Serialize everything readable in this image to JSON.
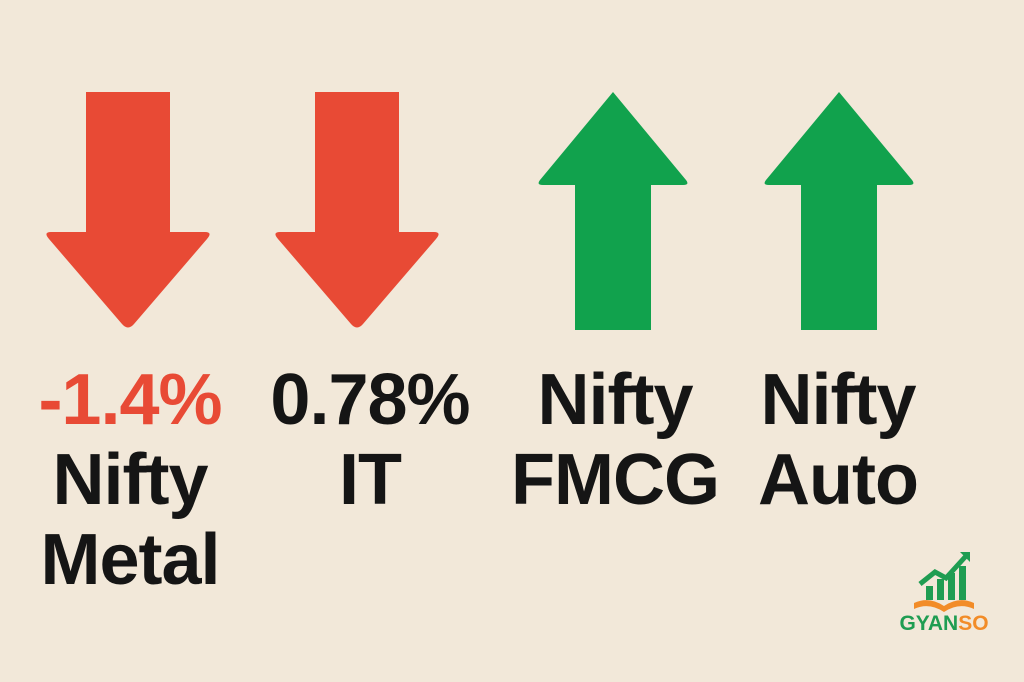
{
  "colors": {
    "background": "#f2e8d9",
    "down_arrow": "#e84a35",
    "up_arrow": "#11a24d",
    "text": "#151515",
    "negative_value": "#e84a35",
    "logo_green": "#1f9d52",
    "logo_orange": "#f28c28"
  },
  "sectors": [
    {
      "value": "-1.4%",
      "line1": "Nifty",
      "line2": "Metal",
      "direction": "down",
      "icon": "down-arrow-icon"
    },
    {
      "value": "0.78%",
      "line1": "IT",
      "line2": "",
      "direction": "down",
      "icon": "down-arrow-icon"
    },
    {
      "value": "",
      "line1": "Nifty",
      "line2": "FMCG",
      "direction": "up",
      "icon": "up-arrow-icon"
    },
    {
      "value": "",
      "line1": "Nifty",
      "line2": "Auto",
      "direction": "up",
      "icon": "up-arrow-icon"
    }
  ],
  "logo": {
    "word_part_a": "GYAN",
    "word_part_b": "SO",
    "icon": "growth-book-icon"
  }
}
